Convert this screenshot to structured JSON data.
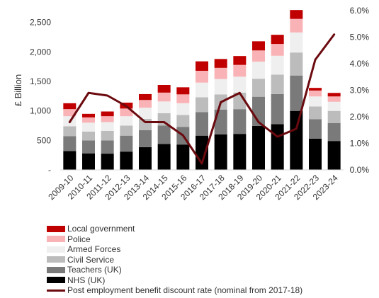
{
  "chart_data": {
    "type": "bar",
    "stacked": true,
    "categories": [
      "2009-10",
      "2010-11",
      "2011-12",
      "2012-13",
      "2013-14",
      "2014-15",
      "2015-16",
      "2016-17",
      "2017-18",
      "2018-19",
      "2019-20",
      "2020-21",
      "2021-22",
      "2022-23",
      "2023-24"
    ],
    "ylabel": "£ Billion",
    "y_ticks": [
      "-",
      "500",
      "1,000",
      "1,500",
      "2,000",
      "2,500"
    ],
    "ylim": [
      0,
      2700
    ],
    "y2_ticks": [
      "0.0%",
      "1.0%",
      "2.0%",
      "3.0%",
      "4.0%",
      "5.0%",
      "6.0%"
    ],
    "y2lim": [
      0,
      6.0
    ],
    "series": [
      {
        "name": "NHS (UK)",
        "color": "#000000",
        "values": [
          320,
          280,
          275,
          310,
          385,
          440,
          430,
          580,
          600,
          610,
          745,
          775,
          1000,
          530,
          490
        ]
      },
      {
        "name": "Teachers (UK)",
        "color": "#7a7a7a",
        "values": [
          250,
          220,
          225,
          270,
          290,
          310,
          300,
          400,
          420,
          420,
          495,
          510,
          600,
          330,
          305
        ]
      },
      {
        "name": "Civil Service",
        "color": "#bcbcbc",
        "values": [
          170,
          150,
          160,
          170,
          190,
          210,
          200,
          250,
          260,
          280,
          305,
          330,
          390,
          215,
          205
        ]
      },
      {
        "name": "Armed Forces",
        "color": "#efefef",
        "values": [
          170,
          150,
          150,
          160,
          190,
          200,
          200,
          250,
          260,
          270,
          290,
          320,
          340,
          170,
          155
        ]
      },
      {
        "name": "Police",
        "color": "#f9b3b6",
        "values": [
          120,
          90,
          100,
          130,
          130,
          150,
          150,
          200,
          190,
          200,
          190,
          200,
          230,
          100,
          90
        ]
      },
      {
        "name": "Local government",
        "color": "#c00000",
        "values": [
          100,
          60,
          80,
          100,
          100,
          130,
          120,
          160,
          150,
          150,
          155,
          155,
          150,
          45,
          60
        ]
      }
    ],
    "line_series": {
      "name": "Post employment benefit discount rate (nominal from 2017-18)",
      "color": "#6b0a0f",
      "axis": "right",
      "values": [
        1.8,
        2.9,
        2.8,
        2.4,
        1.8,
        1.8,
        1.3,
        0.24,
        2.55,
        2.9,
        1.8,
        1.25,
        1.55,
        4.15,
        5.1
      ]
    },
    "legend_position": "bottom-left",
    "grid": false
  }
}
